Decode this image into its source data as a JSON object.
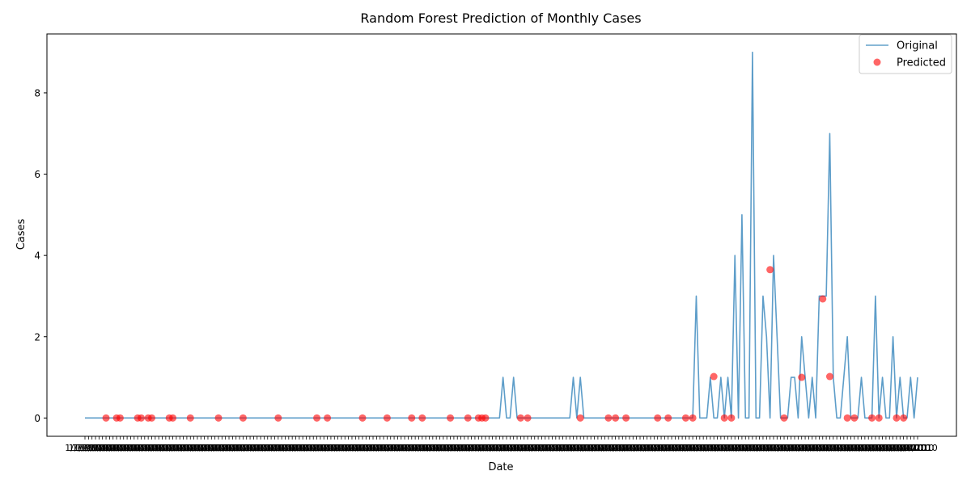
{
  "chart_data": {
    "type": "line",
    "title": "Random Forest Prediction of Monthly Cases",
    "xlabel": "Date",
    "ylabel": "Cases",
    "x_tick_count": 238,
    "x_tick_labels_note": "dense overlapping date labels, illegible",
    "x_tick_text": "1/1/2010",
    "ylim": [
      -0.45,
      9.45
    ],
    "yticks": [
      0,
      2,
      4,
      6,
      8
    ],
    "grid": false,
    "legend_position": "top-right",
    "series": [
      {
        "name": "Original",
        "kind": "line",
        "color": "#1f77b4",
        "x": [
          0,
          118,
          119,
          120,
          121,
          122,
          123,
          138,
          139,
          140,
          141,
          142,
          143,
          144,
          173,
          174,
          175,
          176,
          177,
          178,
          179,
          180,
          181,
          182,
          183,
          184,
          185,
          186,
          187,
          188,
          189,
          190,
          191,
          192,
          193,
          194,
          195,
          196,
          197,
          198,
          199,
          200,
          201,
          202,
          203,
          204,
          205,
          206,
          207,
          208,
          209,
          210,
          211,
          212,
          213,
          214,
          215,
          216,
          217,
          218,
          219,
          220,
          221,
          222,
          223,
          224,
          225,
          226,
          227,
          228,
          229,
          230,
          231,
          232,
          233,
          234,
          235,
          236,
          237
        ],
        "y": [
          0,
          0,
          1,
          0,
          0,
          1,
          0,
          0,
          1,
          0,
          1,
          0,
          0,
          0,
          0,
          3,
          0,
          0,
          0,
          1,
          0,
          0,
          1,
          0,
          1,
          0,
          4,
          0,
          5,
          0,
          0,
          9,
          0,
          0,
          3,
          2,
          0,
          4,
          2,
          0,
          0,
          0,
          1,
          1,
          0,
          2,
          1,
          0,
          1,
          0,
          3,
          3,
          3,
          7,
          1,
          0,
          0,
          1,
          2,
          0,
          0,
          0,
          1,
          0,
          0,
          0,
          3,
          0,
          1,
          0,
          0,
          2,
          0,
          1,
          0,
          0,
          1,
          0,
          1
        ]
      },
      {
        "name": "Predicted",
        "kind": "scatter",
        "color": "#ff0000",
        "x": [
          6,
          9,
          10,
          15,
          16,
          18,
          19,
          24,
          25,
          30,
          38,
          45,
          55,
          66,
          69,
          79,
          86,
          93,
          96,
          104,
          109,
          112,
          113,
          114,
          124,
          126,
          141,
          149,
          151,
          154,
          163,
          166,
          171,
          173,
          179,
          182,
          184,
          195,
          199,
          204,
          210,
          212,
          217,
          219,
          224,
          226,
          231,
          233
        ],
        "y": [
          0,
          0,
          0,
          0,
          0,
          0,
          0,
          0,
          0,
          0,
          0,
          0,
          0,
          0,
          0,
          0,
          0,
          0,
          0,
          0,
          0,
          0,
          0,
          0,
          0,
          0,
          0,
          0,
          0,
          0,
          0,
          0,
          0,
          0,
          1.02,
          0,
          0,
          3.65,
          0,
          1,
          2.93,
          1.02,
          0,
          0,
          0,
          0,
          0,
          0
        ]
      }
    ]
  }
}
